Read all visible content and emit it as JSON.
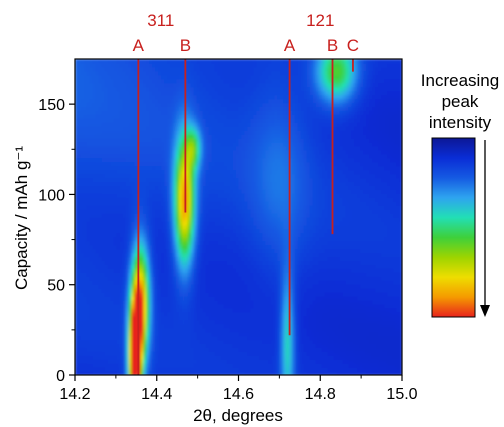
{
  "chart_data": {
    "type": "heatmap",
    "xlabel": "2θ, degrees",
    "ylabel": "Capacity / mAh g⁻¹",
    "xlim": [
      14.2,
      15.0
    ],
    "ylim": [
      0,
      175
    ],
    "xticks": [
      {
        "value": 14.2,
        "label": "14.2"
      },
      {
        "value": 14.4,
        "label": "14.4"
      },
      {
        "value": 14.6,
        "label": "14.6"
      },
      {
        "value": 14.8,
        "label": "14.8"
      },
      {
        "value": 15.0,
        "label": "15.0"
      }
    ],
    "yticks": [
      {
        "value": 0,
        "label": "0"
      },
      {
        "value": 50,
        "label": "50"
      },
      {
        "value": 100,
        "label": "100"
      },
      {
        "value": 150,
        "label": "150"
      }
    ],
    "colormap": [
      "#e8231c",
      "#f59a00",
      "#eedd00",
      "#9dd400",
      "#3ed03b",
      "#22dfb5",
      "#2ea4ef",
      "#155ae2",
      "#0a2dd6",
      "#0d1796"
    ],
    "legend": {
      "title_lines": [
        "Increasing",
        "peak",
        "intensity"
      ],
      "placement": "right"
    },
    "peak_groups": [
      {
        "label": "311",
        "x_center": 14.41
      },
      {
        "label": "121",
        "x_center": 14.8
      }
    ],
    "reference_lines": [
      {
        "label": "A",
        "x": 14.355,
        "y_start": 0,
        "y_end": 175,
        "color": "#c8201e"
      },
      {
        "label": "B",
        "x": 14.47,
        "y_start": 90,
        "y_end": 175,
        "color": "#c8201e"
      },
      {
        "label": "A",
        "x": 14.725,
        "y_start": 22,
        "y_end": 175,
        "color": "#c8201e"
      },
      {
        "label": "B",
        "x": 14.83,
        "y_start": 78,
        "y_end": 175,
        "color": "#c8201e"
      },
      {
        "label": "C",
        "x": 14.88,
        "y_start": 168,
        "y_end": 175,
        "color": "#c8201e"
      }
    ],
    "intensity_peaks": [
      {
        "x": 14.347,
        "y": 8,
        "sx": 0.011,
        "sy": 22,
        "amp": 1.0
      },
      {
        "x": 14.36,
        "y": 40,
        "sx": 0.015,
        "sy": 22,
        "amp": 0.78
      },
      {
        "x": 14.468,
        "y": 96,
        "sx": 0.017,
        "sy": 24,
        "amp": 0.74
      },
      {
        "x": 14.49,
        "y": 126,
        "sx": 0.013,
        "sy": 8,
        "amp": 0.32
      },
      {
        "x": 14.84,
        "y": 168,
        "sx": 0.035,
        "sy": 12,
        "amp": 0.45
      },
      {
        "x": 14.72,
        "y": 18,
        "sx": 0.012,
        "sy": 28,
        "amp": 0.3
      },
      {
        "x": 14.7,
        "y": 110,
        "sx": 0.05,
        "sy": 40,
        "amp": 0.1
      }
    ]
  }
}
